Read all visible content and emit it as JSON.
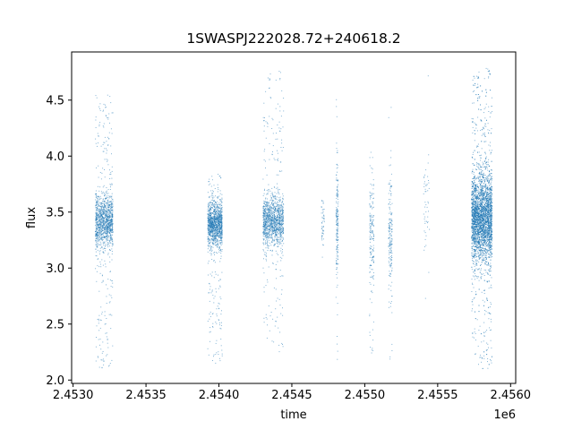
{
  "chart_data": {
    "type": "scatter",
    "title": "1SWASPJ222028.72+240618.2",
    "xlabel": "time",
    "ylabel": "flux",
    "x_offset_label": "1e6",
    "xlim": [
      2452990,
      2456035
    ],
    "ylim": [
      1.97,
      4.93
    ],
    "x_ticks": [
      2453000,
      2453500,
      2454000,
      2454500,
      2455000,
      2455500,
      2456000
    ],
    "x_tick_labels": [
      "2.4530",
      "2.4535",
      "2.4540",
      "2.4545",
      "2.4550",
      "2.4555",
      "2.4560"
    ],
    "y_ticks": [
      2.0,
      2.5,
      3.0,
      3.5,
      4.0,
      4.5
    ],
    "y_tick_labels": [
      "2.0",
      "2.5",
      "3.0",
      "3.5",
      "4.0",
      "4.5"
    ],
    "grid": false,
    "marker_color": "#1f77b4",
    "point_clusters": [
      {
        "x_range": [
          2453150,
          2453270
        ],
        "center": 3.42,
        "core_spread": 0.22,
        "y_extent": [
          2.1,
          4.55
        ],
        "density": "high"
      },
      {
        "x_range": [
          2453920,
          2454020
        ],
        "center": 3.4,
        "core_spread": 0.18,
        "y_extent": [
          2.15,
          3.85
        ],
        "density": "high"
      },
      {
        "x_range": [
          2454300,
          2454440
        ],
        "center": 3.42,
        "core_spread": 0.2,
        "y_extent": [
          2.25,
          4.78
        ],
        "density": "high"
      },
      {
        "x_range": [
          2454700,
          2454720
        ],
        "center": 3.4,
        "core_spread": 0.2,
        "y_extent": [
          3.05,
          3.76
        ],
        "density": "low"
      },
      {
        "x_range": [
          2454800,
          2454815
        ],
        "center": 3.45,
        "core_spread": 0.45,
        "y_extent": [
          2.1,
          4.6
        ],
        "density": "medium"
      },
      {
        "x_range": [
          2455030,
          2455060
        ],
        "center": 3.3,
        "core_spread": 0.45,
        "y_extent": [
          2.2,
          4.15
        ],
        "density": "medium"
      },
      {
        "x_range": [
          2455160,
          2455185
        ],
        "center": 3.3,
        "core_spread": 0.45,
        "y_extent": [
          2.1,
          4.45
        ],
        "density": "medium"
      },
      {
        "x_range": [
          2455400,
          2455440
        ],
        "center": 3.6,
        "core_spread": 0.45,
        "y_extent": [
          2.7,
          4.75
        ],
        "density": "low"
      },
      {
        "x_range": [
          2455730,
          2455870
        ],
        "center": 3.45,
        "core_spread": 0.35,
        "y_extent": [
          2.1,
          4.8
        ],
        "density": "very high"
      }
    ]
  }
}
